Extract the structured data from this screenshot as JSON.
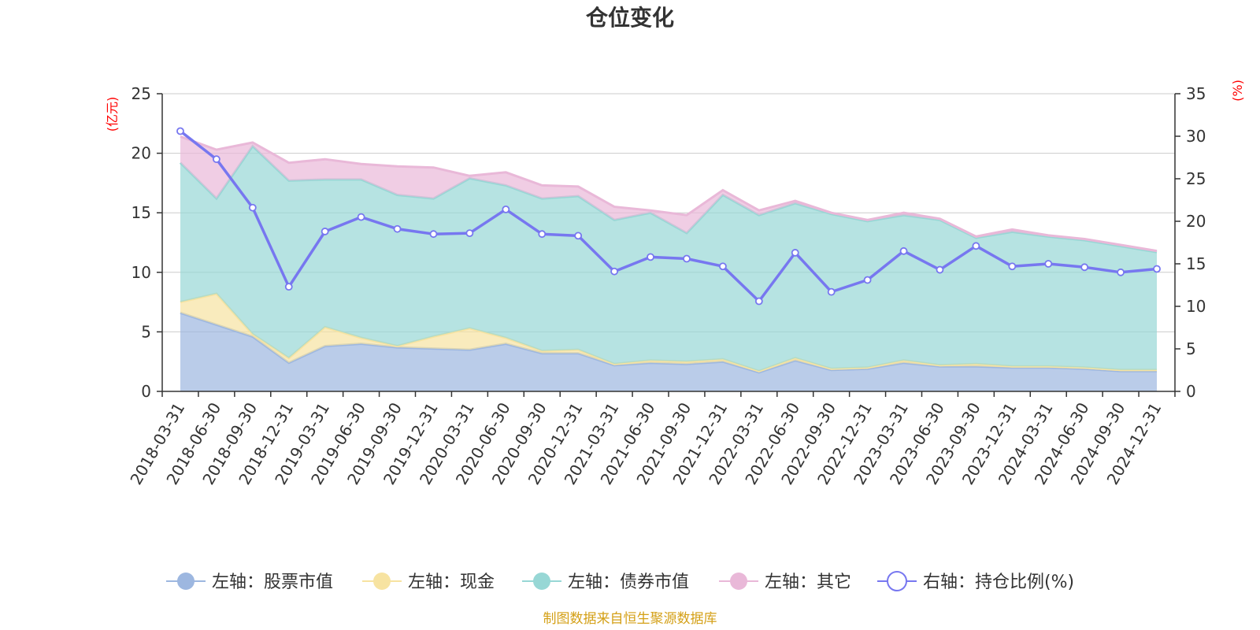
{
  "chart_data": {
    "type": "area",
    "title": "仓位变化",
    "left_axis": {
      "unit": "(亿元)",
      "ylim": [
        0,
        25
      ],
      "ticks": [
        0,
        5,
        10,
        15,
        20,
        25
      ]
    },
    "right_axis": {
      "unit": "(%)",
      "ylim": [
        0,
        35
      ],
      "ticks": [
        0,
        5,
        10,
        15,
        20,
        25,
        30,
        35
      ]
    },
    "categories": [
      "2018-03-31",
      "2018-06-30",
      "2018-09-30",
      "2018-12-31",
      "2019-03-31",
      "2019-06-30",
      "2019-09-30",
      "2019-12-31",
      "2020-03-31",
      "2020-06-30",
      "2020-09-30",
      "2020-12-31",
      "2021-03-31",
      "2021-06-30",
      "2021-09-30",
      "2021-12-31",
      "2022-03-31",
      "2022-06-30",
      "2022-09-30",
      "2022-12-31",
      "2023-03-31",
      "2023-06-30",
      "2023-09-30",
      "2023-12-31",
      "2024-03-31",
      "2024-06-30",
      "2024-09-30",
      "2024-12-31"
    ],
    "stacked_series": [
      {
        "name": "左轴：股票市值",
        "color": "#9db7e0",
        "values": [
          6.6,
          5.6,
          4.6,
          2.4,
          3.8,
          4.0,
          3.7,
          3.6,
          3.5,
          4.0,
          3.2,
          3.2,
          2.2,
          2.4,
          2.3,
          2.5,
          1.6,
          2.6,
          1.8,
          1.9,
          2.4,
          2.1,
          2.1,
          2.0,
          2.0,
          1.9,
          1.7,
          1.7
        ]
      },
      {
        "name": "左轴：现金",
        "color": "#f7e3a1",
        "values": [
          0.9,
          2.6,
          0.2,
          0.4,
          1.6,
          0.5,
          0.1,
          1.0,
          1.8,
          0.5,
          0.2,
          0.3,
          0.1,
          0.2,
          0.2,
          0.2,
          0.1,
          0.2,
          0.1,
          0.1,
          0.2,
          0.1,
          0.2,
          0.1,
          0.1,
          0.1,
          0.1,
          0.1
        ]
      },
      {
        "name": "左轴：债券市值",
        "color": "#97d7d5",
        "values": [
          11.7,
          8.0,
          15.8,
          14.9,
          12.4,
          13.3,
          12.7,
          11.6,
          12.6,
          12.8,
          12.8,
          12.9,
          12.1,
          12.4,
          10.8,
          13.8,
          13.1,
          13.0,
          13.0,
          12.3,
          12.2,
          12.2,
          10.6,
          11.3,
          10.9,
          10.7,
          10.4,
          9.9
        ]
      },
      {
        "name": "左轴：其它",
        "color": "#e9b8d8",
        "values": [
          2.2,
          4.1,
          0.3,
          1.5,
          1.7,
          1.3,
          2.4,
          2.6,
          0.2,
          1.1,
          1.1,
          0.8,
          1.1,
          0.2,
          1.5,
          0.4,
          0.4,
          0.2,
          0.1,
          0.1,
          0.2,
          0.1,
          0.1,
          0.2,
          0.1,
          0.1,
          0.1,
          0.1
        ]
      }
    ],
    "line_series": {
      "name": "右轴：持仓比例(%)",
      "color": "#7777f0",
      "values": [
        30.6,
        27.3,
        21.6,
        12.3,
        18.8,
        20.5,
        19.1,
        18.5,
        18.6,
        21.4,
        18.5,
        18.3,
        14.1,
        15.8,
        15.6,
        14.7,
        10.6,
        16.3,
        11.7,
        13.1,
        16.5,
        14.3,
        17.1,
        14.7,
        15.0,
        14.6,
        14.0,
        14.4
      ]
    },
    "legend_position": "bottom",
    "grid": true
  },
  "source_note": "制图数据来自恒生聚源数据库"
}
